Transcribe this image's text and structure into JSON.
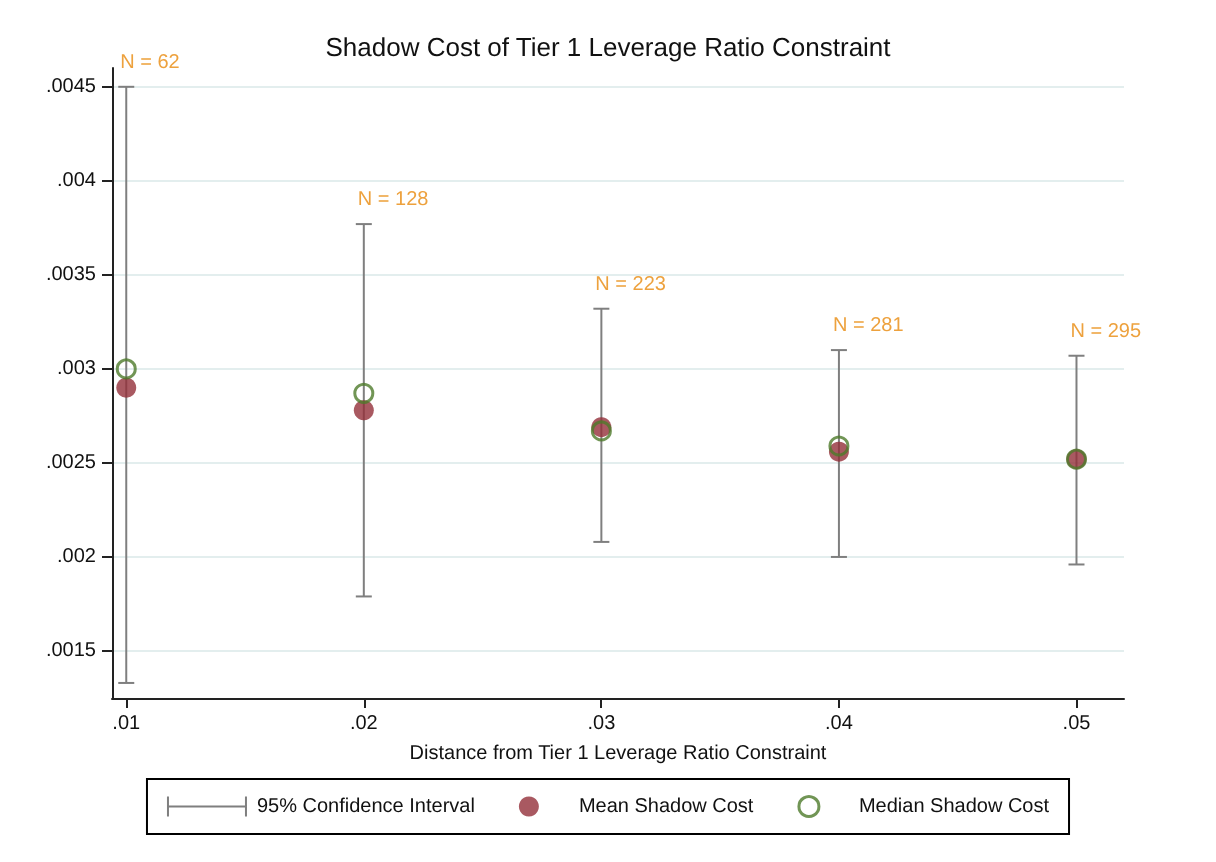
{
  "chart_data": {
    "type": "scatter",
    "title": "Shadow Cost of Tier 1 Leverage Ratio Constraint",
    "xlabel": "Distance from Tier 1 Leverage Ratio Constraint",
    "x": [
      0.01,
      0.02,
      0.03,
      0.04,
      0.05
    ],
    "series": [
      {
        "name": "Mean Shadow Cost",
        "color": "#93303a",
        "values": [
          0.0029,
          0.00278,
          0.00269,
          0.00256,
          0.00252
        ],
        "errors": [
          [
            0.00133,
            0.0045
          ],
          [
            0.00179,
            0.00377
          ],
          [
            0.00208,
            0.00332
          ],
          [
            0.002,
            0.0031
          ],
          [
            0.00196,
            0.00307
          ]
        ]
      },
      {
        "name": "Median Shadow Cost",
        "color": "#4e7a2a",
        "values": [
          0.003,
          0.00287,
          0.00267,
          0.00259,
          0.00252
        ]
      }
    ],
    "xlim": [
      0.0094,
      0.052
    ],
    "ylim": [
      0.00125,
      0.0046
    ],
    "xticks": [
      {
        "value": 0.01,
        "label": ".01"
      },
      {
        "value": 0.02,
        "label": ".02"
      },
      {
        "value": 0.03,
        "label": ".03"
      },
      {
        "value": 0.04,
        "label": ".04"
      },
      {
        "value": 0.05,
        "label": ".05"
      }
    ],
    "yticks": [
      {
        "value": 0.0015,
        "label": ".0015"
      },
      {
        "value": 0.002,
        "label": ".002"
      },
      {
        "value": 0.0025,
        "label": ".0025"
      },
      {
        "value": 0.003,
        "label": ".003"
      },
      {
        "value": 0.0035,
        "label": ".0035"
      },
      {
        "value": 0.004,
        "label": ".004"
      },
      {
        "value": 0.0045,
        "label": ".0045"
      }
    ],
    "annotations": [
      "95% Confidence Interval",
      {
        "text": "N = 62",
        "x": 0.01,
        "y": 0.0045
      },
      {
        "text": "N = 128",
        "x": 0.02,
        "y": 0.00377
      },
      {
        "text": "N = 223",
        "x": 0.03,
        "y": 0.00332
      },
      {
        "text": "N = 281",
        "x": 0.04,
        "y": 0.0031
      },
      {
        "text": "N = 295",
        "x": 0.05,
        "y": 0.00307
      }
    ],
    "grid": "y",
    "legend": "bottom",
    "marker": "circle"
  }
}
